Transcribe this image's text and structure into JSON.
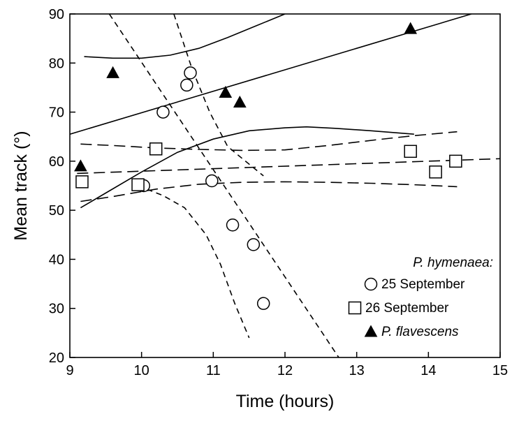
{
  "chart_data": {
    "type": "scatter",
    "title": "",
    "xlabel": "Time (hours)",
    "ylabel": "Mean track (°)",
    "xlim": [
      9,
      15
    ],
    "ylim": [
      20,
      90
    ],
    "x_ticks": [
      9,
      10,
      11,
      12,
      13,
      14,
      15
    ],
    "y_ticks": [
      20,
      30,
      40,
      50,
      60,
      70,
      80,
      90
    ],
    "grid": false,
    "legend": {
      "placement": "bottom-right",
      "heading": "P. hymenaea:",
      "entries": [
        {
          "marker": "open-circle",
          "label": "25 September"
        },
        {
          "marker": "open-square",
          "label": "26 September"
        },
        {
          "marker": "filled-triangle",
          "label": "P. flavescens"
        }
      ]
    },
    "series": [
      {
        "name": "25 September",
        "marker": "open-circle",
        "points": [
          [
            10.03,
            55
          ],
          [
            10.3,
            70
          ],
          [
            10.63,
            75.5
          ],
          [
            10.68,
            78
          ],
          [
            10.98,
            56
          ],
          [
            11.27,
            47
          ],
          [
            11.56,
            43
          ],
          [
            11.7,
            31
          ]
        ]
      },
      {
        "name": "26 September",
        "marker": "open-square",
        "points": [
          [
            9.17,
            55.8
          ],
          [
            9.95,
            55.2
          ],
          [
            10.2,
            62.5
          ],
          [
            13.75,
            62
          ],
          [
            14.1,
            57.8
          ],
          [
            14.38,
            60
          ]
        ]
      },
      {
        "name": "P. flavescens",
        "marker": "filled-triangle",
        "points": [
          [
            9.15,
            59
          ],
          [
            9.6,
            78
          ],
          [
            11.17,
            74
          ],
          [
            11.37,
            72
          ],
          [
            13.75,
            87
          ]
        ]
      }
    ],
    "fit_lines": [
      {
        "series": "P. flavescens",
        "role": "regression",
        "style": "solid",
        "points": [
          [
            9,
            65.5
          ],
          [
            14.6,
            90
          ]
        ]
      },
      {
        "series": "P. flavescens",
        "role": "upper-ci",
        "style": "solid",
        "points": [
          [
            9.2,
            81.3
          ],
          [
            9.6,
            81
          ],
          [
            10,
            81
          ],
          [
            10.4,
            81.6
          ],
          [
            10.8,
            83
          ],
          [
            11.2,
            85.2
          ],
          [
            11.6,
            87.6
          ],
          [
            12,
            90
          ]
        ]
      },
      {
        "series": "P. flavescens",
        "role": "lower-ci",
        "style": "solid",
        "points": [
          [
            9.15,
            50.5
          ],
          [
            9.5,
            53.5
          ],
          [
            10,
            57.8
          ],
          [
            10.5,
            61.8
          ],
          [
            11,
            64.5
          ],
          [
            11.5,
            66.2
          ],
          [
            12,
            66.8
          ],
          [
            12.3,
            67
          ],
          [
            12.7,
            66.7
          ],
          [
            13.2,
            66.2
          ],
          [
            13.8,
            65.5
          ]
        ]
      },
      {
        "series": "25 September",
        "role": "regression",
        "style": "short-dash",
        "points": [
          [
            9.55,
            90
          ],
          [
            12.75,
            20
          ]
        ]
      },
      {
        "series": "25 September",
        "role": "upper-ci",
        "style": "short-dash",
        "points": [
          [
            10.45,
            90
          ],
          [
            10.7,
            79
          ],
          [
            10.95,
            70
          ],
          [
            11.2,
            63
          ],
          [
            11.45,
            60
          ],
          [
            11.7,
            57
          ]
        ]
      },
      {
        "series": "25 September",
        "role": "lower-ci",
        "style": "short-dash",
        "points": [
          [
            9.95,
            55
          ],
          [
            10.3,
            53
          ],
          [
            10.6,
            50.5
          ],
          [
            10.9,
            45
          ],
          [
            11.1,
            39
          ],
          [
            11.3,
            31
          ],
          [
            11.5,
            24
          ]
        ]
      },
      {
        "series": "26 September",
        "role": "regression",
        "style": "long-dash",
        "points": [
          [
            9.1,
            57.5
          ],
          [
            15,
            60.5
          ]
        ]
      },
      {
        "series": "26 September",
        "role": "upper-ci",
        "style": "long-dash",
        "points": [
          [
            9.15,
            63.5
          ],
          [
            9.6,
            63.2
          ],
          [
            10.2,
            62.7
          ],
          [
            10.8,
            62.4
          ],
          [
            11.4,
            62.2
          ],
          [
            12,
            62.3
          ],
          [
            12.6,
            63.2
          ],
          [
            13.3,
            64.4
          ],
          [
            13.8,
            65.2
          ],
          [
            14.4,
            66
          ]
        ]
      },
      {
        "series": "26 September",
        "role": "lower-ci",
        "style": "long-dash",
        "points": [
          [
            9.15,
            51.8
          ],
          [
            9.6,
            52.8
          ],
          [
            10.2,
            54.3
          ],
          [
            10.8,
            55.3
          ],
          [
            11.4,
            55.7
          ],
          [
            12,
            55.8
          ],
          [
            12.6,
            55.7
          ],
          [
            13.2,
            55.5
          ],
          [
            13.8,
            55.2
          ],
          [
            14.4,
            54.8
          ]
        ]
      }
    ]
  }
}
